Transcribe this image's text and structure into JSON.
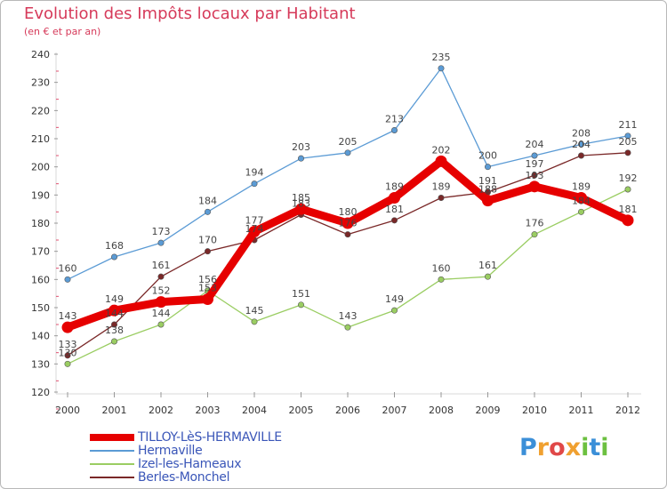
{
  "title": "Evolution des Impôts locaux par Habitant",
  "subtitle": "(en € et par an)",
  "logo": {
    "letters": [
      {
        "ch": "P",
        "color": "#3b8fd8"
      },
      {
        "ch": "r",
        "color": "#f0a030"
      },
      {
        "ch": "o",
        "color": "#e04848"
      },
      {
        "ch": "x",
        "color": "#f0a030"
      },
      {
        "ch": "i",
        "color": "#6cc040"
      },
      {
        "ch": "t",
        "color": "#3b8fd8"
      },
      {
        "ch": "i",
        "color": "#6cc040"
      }
    ]
  },
  "chart_data": {
    "type": "line",
    "title": "Evolution des Impôts locaux par Habitant",
    "subtitle": "(en € et par an)",
    "x": [
      "2000",
      "2001",
      "2002",
      "2003",
      "2004",
      "2005",
      "2006",
      "2007",
      "2008",
      "2009",
      "2010",
      "2011",
      "2012"
    ],
    "ylim": [
      120,
      240
    ],
    "yticks": [
      120,
      130,
      140,
      150,
      160,
      170,
      180,
      190,
      200,
      210,
      220,
      230,
      240
    ],
    "grid": false,
    "legend_position": "bottom-left",
    "series": [
      {
        "name": "TILLOY-LèS-HERMAVILLE",
        "color": "#e60000",
        "values": [
          143,
          149,
          152,
          153,
          177,
          185,
          180,
          189,
          202,
          188,
          193,
          189,
          181
        ]
      },
      {
        "name": "Hermaville",
        "color": "#5b9bd5",
        "values": [
          160,
          168,
          173,
          184,
          194,
          203,
          205,
          213,
          235,
          200,
          204,
          208,
          211
        ]
      },
      {
        "name": "Izel-les-Hameaux",
        "color": "#9acd62",
        "values": [
          130,
          138,
          144,
          156,
          145,
          151,
          143,
          149,
          160,
          161,
          176,
          184,
          192
        ]
      },
      {
        "name": "Berles-Monchel",
        "color": "#7a2828",
        "values": [
          133,
          144,
          161,
          170,
          174,
          183,
          176,
          181,
          189,
          191,
          197,
          204,
          205
        ]
      }
    ]
  }
}
